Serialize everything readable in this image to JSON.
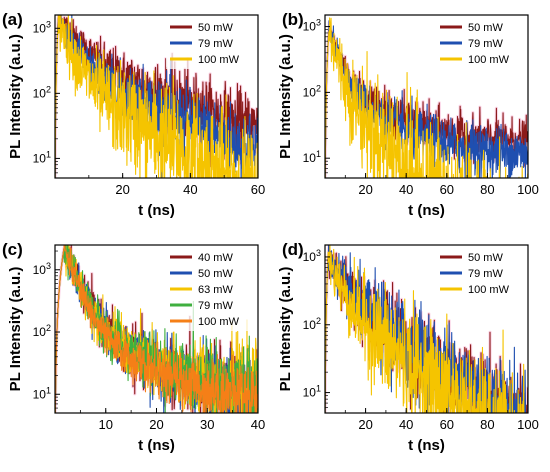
{
  "colors": {
    "dark_red": "#8B1A1A",
    "red": "#E8121A",
    "blue": "#1F4FB0",
    "yellow": "#F5C400",
    "green": "#3FAF3F",
    "orange": "#F57F17",
    "pink_halo": "#F7B3D3"
  },
  "chart_data": [
    {
      "panel_label": "(a)",
      "type": "line",
      "xlabel": "t (ns)",
      "ylabel": "PL Intensity (a.u.)",
      "xlim": [
        0,
        60
      ],
      "ylim": [
        5,
        1600
      ],
      "yscale": "log",
      "xticks": [
        20,
        40,
        60
      ],
      "yticks": [
        10,
        100,
        1000
      ],
      "legend_position": "top-right",
      "series": [
        {
          "name": "50 mW",
          "color": "#8B1A1A",
          "peak": 1600,
          "tau1": 4.5,
          "tau2": 21,
          "w": 0.75,
          "floor": 5,
          "noise": 0.22,
          "peak_x": 1.0
        },
        {
          "name": "79 mW",
          "color": "#1F4FB0",
          "peak": 1450,
          "tau1": 3.8,
          "tau2": 18,
          "w": 0.82,
          "floor": 3,
          "noise": 0.25,
          "peak_x": 1.0
        },
        {
          "name": "100 mW",
          "color": "#F5C400",
          "peak": 1300,
          "tau1": 3.3,
          "tau2": 14,
          "w": 0.87,
          "floor": 0.5,
          "noise": 0.42,
          "peak_x": 1.0
        }
      ]
    },
    {
      "panel_label": "(b)",
      "type": "line",
      "xlabel": "t (ns)",
      "ylabel": "PL Intensity (a.u.)",
      "xlim": [
        0,
        100
      ],
      "ylim": [
        5,
        1500
      ],
      "yscale": "log",
      "xticks": [
        20,
        40,
        60,
        80,
        100
      ],
      "yticks": [
        10,
        100,
        1000
      ],
      "legend_position": "top-right",
      "series": [
        {
          "name": "50 mW",
          "color": "#8B1A1A",
          "peak": 1000,
          "tau1": 4,
          "tau2": 20,
          "w": 0.85,
          "floor": 17,
          "noise": 0.14,
          "peak_x": 2.0
        },
        {
          "name": "79 mW",
          "color": "#1F4FB0",
          "peak": 950,
          "tau1": 4,
          "tau2": 18,
          "w": 0.87,
          "floor": 11,
          "noise": 0.18,
          "peak_x": 2.0
        },
        {
          "name": "100 mW",
          "color": "#F5C400",
          "peak": 900,
          "tau1": 3.5,
          "tau2": 15,
          "w": 0.89,
          "floor": 0.5,
          "noise": 0.45,
          "peak_x": 2.0
        }
      ]
    },
    {
      "panel_label": "(c)",
      "type": "line",
      "xlabel": "t (ns)",
      "ylabel": "PL Intensity (a.u.)",
      "xlim": [
        0,
        40
      ],
      "ylim": [
        5,
        2500
      ],
      "yscale": "log",
      "xticks": [
        10,
        20,
        30,
        40
      ],
      "yticks": [
        10,
        100,
        1000
      ],
      "legend_position": "top-right",
      "series": [
        {
          "name": "40 mW",
          "color": "#8B1A1A",
          "peak": 2300,
          "tau1": 2.0,
          "tau2": 8,
          "w": 0.92,
          "floor": 9,
          "noise": 0.28,
          "peak_x": 1.8
        },
        {
          "name": "50 mW",
          "color": "#1F4FB0",
          "peak": 2250,
          "tau1": 2.0,
          "tau2": 8,
          "w": 0.92,
          "floor": 9,
          "noise": 0.28,
          "peak_x": 1.8
        },
        {
          "name": "63 mW",
          "color": "#F5C400",
          "peak": 2250,
          "tau1": 2.0,
          "tau2": 8,
          "w": 0.92,
          "floor": 11,
          "noise": 0.3,
          "peak_x": 1.8
        },
        {
          "name": "79 mW",
          "color": "#3FAF3F",
          "peak": 2200,
          "tau1": 2.0,
          "tau2": 8,
          "w": 0.92,
          "floor": 11,
          "noise": 0.28,
          "peak_x": 1.8
        },
        {
          "name": "100 mW",
          "color": "#F57F17",
          "peak": 2200,
          "tau1": 1.9,
          "tau2": 7.5,
          "w": 0.93,
          "floor": 9,
          "noise": 0.22,
          "peak_x": 1.8
        }
      ]
    },
    {
      "panel_label": "(d)",
      "type": "line",
      "xlabel": "t (ns)",
      "ylabel": "PL Intensity (a.u.)",
      "xlim": [
        0,
        100
      ],
      "ylim": [
        5,
        1500
      ],
      "yscale": "log",
      "xticks": [
        20,
        40,
        60,
        80,
        100
      ],
      "yticks": [
        10,
        100,
        1000
      ],
      "legend_position": "top-right",
      "series": [
        {
          "name": "50 mW",
          "color": "#8B1A1A",
          "peak": 1000,
          "tau1": 6,
          "tau2": 22,
          "w": 0.7,
          "floor": 0.5,
          "noise": 0.28,
          "peak_x": 1.5
        },
        {
          "name": "79 mW",
          "color": "#1F4FB0",
          "peak": 1000,
          "tau1": 6,
          "tau2": 22,
          "w": 0.7,
          "floor": 0.5,
          "noise": 0.3,
          "peak_x": 1.5
        },
        {
          "name": "100 mW",
          "color": "#F5C400",
          "peak": 950,
          "tau1": 5,
          "tau2": 18,
          "w": 0.75,
          "floor": 0.5,
          "noise": 0.38,
          "peak_x": 1.5
        }
      ]
    }
  ]
}
